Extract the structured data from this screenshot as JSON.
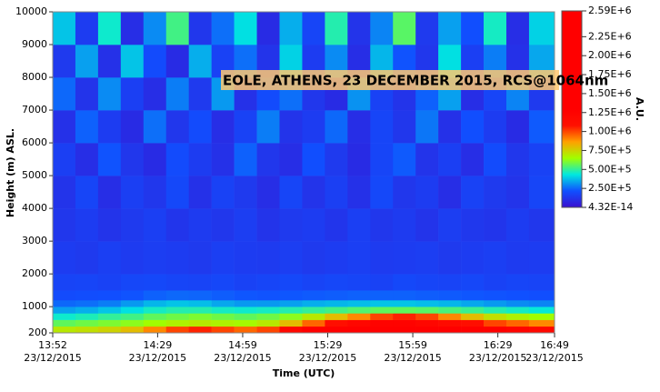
{
  "chart_data": {
    "type": "heatmap",
    "title": "EOLE, ATHENS, 23 DECEMBER 2015, RCS@1064nm",
    "xlabel": "Time (UTC)",
    "ylabel": "Height (m) ASL.",
    "colorbar_label": "A.U.",
    "xlim": [
      832,
      1009
    ],
    "xticks": [
      {
        "value": 832,
        "label": "13:52"
      },
      {
        "value": 869,
        "label": "14:29"
      },
      {
        "value": 899,
        "label": "14:59"
      },
      {
        "value": 929,
        "label": "15:29"
      },
      {
        "value": 959,
        "label": "15:59"
      },
      {
        "value": 989,
        "label": "16:29"
      },
      {
        "value": 1009,
        "label": "16:49"
      }
    ],
    "xtick_dates": [
      "23/12/2015",
      "23/12/2015",
      "23/12/2015",
      "23/12/2015",
      "23/12/2015",
      "23/12/2015",
      "23/12/2015"
    ],
    "ylim": [
      200,
      10000
    ],
    "yticks": [
      200,
      1000,
      2000,
      3000,
      4000,
      5000,
      6000,
      7000,
      8000,
      9000,
      10000
    ],
    "xbins": [
      832,
      840,
      848,
      856,
      864,
      872,
      880,
      888,
      896,
      904,
      912,
      920,
      928,
      936,
      944,
      952,
      960,
      968,
      976,
      984,
      992,
      1000,
      1009
    ],
    "ybins": [
      200,
      400,
      600,
      800,
      1000,
      1200,
      1500,
      2000,
      3000,
      4000,
      5000,
      6000,
      7000,
      8000,
      9000,
      10000
    ],
    "z": [
      [
        700000,
        720000,
        750000,
        800000,
        900000,
        1000000,
        1050000,
        1000000,
        950000,
        1000000,
        1200000,
        1300000,
        1400000,
        1500000,
        1500000,
        1500000,
        1500000,
        1450000,
        1400000,
        1300000,
        1250000,
        1200000
      ],
      [
        560000,
        580000,
        600000,
        620000,
        650000,
        680000,
        700000,
        680000,
        660000,
        700000,
        800000,
        950000,
        1100000,
        1200000,
        1250000,
        1250000,
        1200000,
        1150000,
        1100000,
        1000000,
        950000,
        900000
      ],
      [
        450000,
        470000,
        500000,
        520000,
        560000,
        580000,
        600000,
        580000,
        560000,
        580000,
        620000,
        700000,
        800000,
        900000,
        1000000,
        1050000,
        1000000,
        900000,
        800000,
        720000,
        680000,
        650000
      ],
      [
        330000,
        350000,
        380000,
        420000,
        460000,
        480000,
        480000,
        460000,
        450000,
        460000,
        480000,
        500000,
        520000,
        540000,
        560000,
        560000,
        550000,
        530000,
        510000,
        480000,
        460000,
        440000
      ],
      [
        250000,
        260000,
        280000,
        320000,
        360000,
        380000,
        370000,
        340000,
        320000,
        320000,
        330000,
        350000,
        360000,
        370000,
        380000,
        380000,
        370000,
        360000,
        340000,
        320000,
        300000,
        290000
      ],
      [
        200000,
        205000,
        210000,
        220000,
        240000,
        250000,
        245000,
        235000,
        225000,
        220000,
        225000,
        230000,
        235000,
        240000,
        240000,
        240000,
        235000,
        230000,
        225000,
        220000,
        215000,
        210000
      ],
      [
        175000,
        180000,
        170000,
        185000,
        190000,
        180000,
        175000,
        185000,
        170000,
        180000,
        190000,
        175000,
        185000,
        180000,
        170000,
        190000,
        180000,
        175000,
        185000,
        170000,
        180000,
        175000
      ],
      [
        150000,
        140000,
        160000,
        145000,
        155000,
        150000,
        140000,
        160000,
        150000,
        145000,
        155000,
        140000,
        150000,
        160000,
        145000,
        150000,
        155000,
        140000,
        150000,
        160000,
        145000,
        150000
      ],
      [
        130000,
        150000,
        120000,
        140000,
        160000,
        125000,
        145000,
        130000,
        155000,
        120000,
        140000,
        150000,
        125000,
        160000,
        130000,
        145000,
        120000,
        155000,
        135000,
        125000,
        150000,
        130000
      ],
      [
        120000,
        180000,
        100000,
        160000,
        130000,
        190000,
        110000,
        170000,
        140000,
        100000,
        180000,
        120000,
        160000,
        110000,
        190000,
        130000,
        150000,
        100000,
        170000,
        140000,
        120000,
        180000
      ],
      [
        160000,
        100000,
        220000,
        130000,
        90000,
        200000,
        150000,
        110000,
        240000,
        130000,
        100000,
        210000,
        140000,
        90000,
        180000,
        230000,
        120000,
        160000,
        100000,
        200000,
        130000,
        170000
      ],
      [
        110000,
        240000,
        150000,
        90000,
        260000,
        130000,
        200000,
        100000,
        170000,
        280000,
        120000,
        150000,
        250000,
        100000,
        180000,
        130000,
        270000,
        110000,
        210000,
        150000,
        90000,
        230000
      ],
      [
        250000,
        120000,
        300000,
        160000,
        100000,
        280000,
        140000,
        320000,
        110000,
        200000,
        260000,
        130000,
        90000,
        310000,
        170000,
        120000,
        240000,
        330000,
        100000,
        180000,
        290000,
        140000
      ],
      [
        140000,
        330000,
        110000,
        380000,
        200000,
        90000,
        350000,
        170000,
        260000,
        120000,
        400000,
        150000,
        300000,
        100000,
        360000,
        220000,
        130000,
        420000,
        160000,
        280000,
        110000,
        340000
      ],
      [
        380000,
        150000,
        450000,
        100000,
        300000,
        520000,
        130000,
        260000,
        420000,
        90000,
        350000,
        180000,
        480000,
        120000,
        290000,
        550000,
        140000,
        330000,
        210000,
        460000,
        100000,
        400000
      ]
    ],
    "zlim": [
      4.32e-14,
      2590000
    ],
    "zticks": [
      {
        "value": 2590000,
        "label": "2.59E+6"
      },
      {
        "value": 2250000,
        "label": "2.25E+6"
      },
      {
        "value": 2000000,
        "label": "2.00E+6"
      },
      {
        "value": 1750000,
        "label": "1.75E+6"
      },
      {
        "value": 1500000,
        "label": "1.50E+6"
      },
      {
        "value": 1250000,
        "label": "1.25E+6"
      },
      {
        "value": 1000000,
        "label": "1.00E+6"
      },
      {
        "value": 750000,
        "label": "7.50E+5"
      },
      {
        "value": 500000,
        "label": "5.00E+5"
      },
      {
        "value": 250000,
        "label": "2.50E+5"
      },
      {
        "value": 4.32e-14,
        "label": "4.32E-14"
      }
    ],
    "colors": [
      "#3a10d0",
      "#1050ff",
      "#00e8e0",
      "#a0ff00",
      "#ffa000",
      "#ff1000",
      "#ff0000",
      "#ff0000",
      "#ff0000",
      "#ff0000",
      "#ff0000",
      "#ff0000",
      "#ff0000"
    ]
  }
}
